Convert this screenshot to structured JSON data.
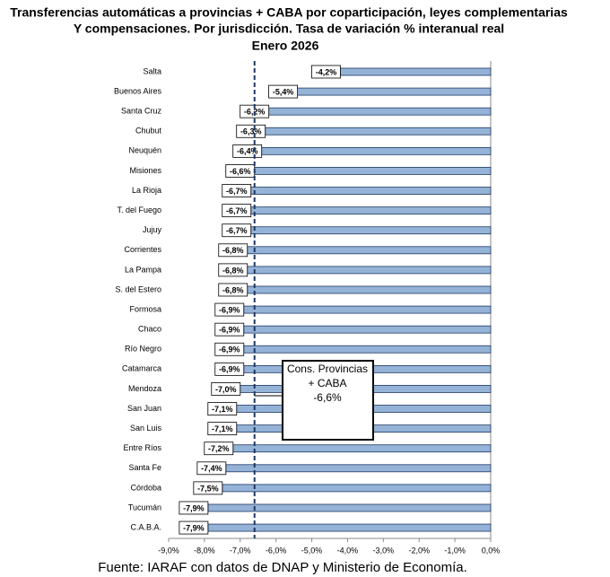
{
  "chart_data": {
    "type": "bar",
    "orientation": "horizontal",
    "title": [
      "Transferencias automáticas  a provincias  + CABA por coparticipación,  leyes complementarias",
      "Y compensaciones.  Por jurisdicción. Tasa de variación % interanual  real",
      "Enero 2026"
    ],
    "categories": [
      "Salta",
      "Buenos Aires",
      "Santa Cruz",
      "Chubut",
      "Neuquén",
      "Misiones",
      "La Rioja",
      "T. del Fuego",
      "Jujuy",
      "Corrientes",
      "La Pampa",
      "S. del Estero",
      "Formosa",
      "Chaco",
      "Río Negro",
      "Catamarca",
      "Mendoza",
      "San Juan",
      "San Luis",
      "Entre Ríos",
      "Santa Fe",
      "Córdoba",
      "Tucumán",
      "C.A.B.A."
    ],
    "values": [
      -4.2,
      -5.4,
      -6.2,
      -6.3,
      -6.4,
      -6.6,
      -6.7,
      -6.7,
      -6.7,
      -6.8,
      -6.8,
      -6.8,
      -6.9,
      -6.9,
      -6.9,
      -6.9,
      -7.0,
      -7.1,
      -7.1,
      -7.2,
      -7.4,
      -7.5,
      -7.9,
      -7.9
    ],
    "value_labels": [
      "-4,2%",
      "-5,4%",
      "-6,2%",
      "-6,3%",
      "-6,4%",
      "-6,6%",
      "-6,7%",
      "-6,7%",
      "-6,7%",
      "-6,8%",
      "-6,8%",
      "-6,8%",
      "-6,9%",
      "-6,9%",
      "-6,9%",
      "-6,9%",
      "-7,0%",
      "-7,1%",
      "-7,1%",
      "-7,2%",
      "-7,4%",
      "-7,5%",
      "-7,9%",
      "-7,9%"
    ],
    "color": "#95b3d7",
    "xlim": [
      -9,
      0
    ],
    "xticks": [
      {
        "value": -9,
        "label": "-9,0%"
      },
      {
        "value": -8,
        "label": "-8,0%"
      },
      {
        "value": -7,
        "label": "-7,0%"
      },
      {
        "value": -6,
        "label": "-6,0%"
      },
      {
        "value": -5,
        "label": "-5,0%"
      },
      {
        "value": -4,
        "label": "-4,0%"
      },
      {
        "value": -3,
        "label": "-3,0%"
      },
      {
        "value": -2,
        "label": "-2,0%"
      },
      {
        "value": -1,
        "label": "-1,0%"
      },
      {
        "value": 0,
        "label": "0,0%"
      }
    ],
    "reference": {
      "value": -6.6,
      "label": [
        "Cons. Provincias",
        "+ CABA",
        "-6,6%"
      ]
    },
    "source": "Fuente: IARAF con datos de DNAP y Ministerio de Economía."
  }
}
